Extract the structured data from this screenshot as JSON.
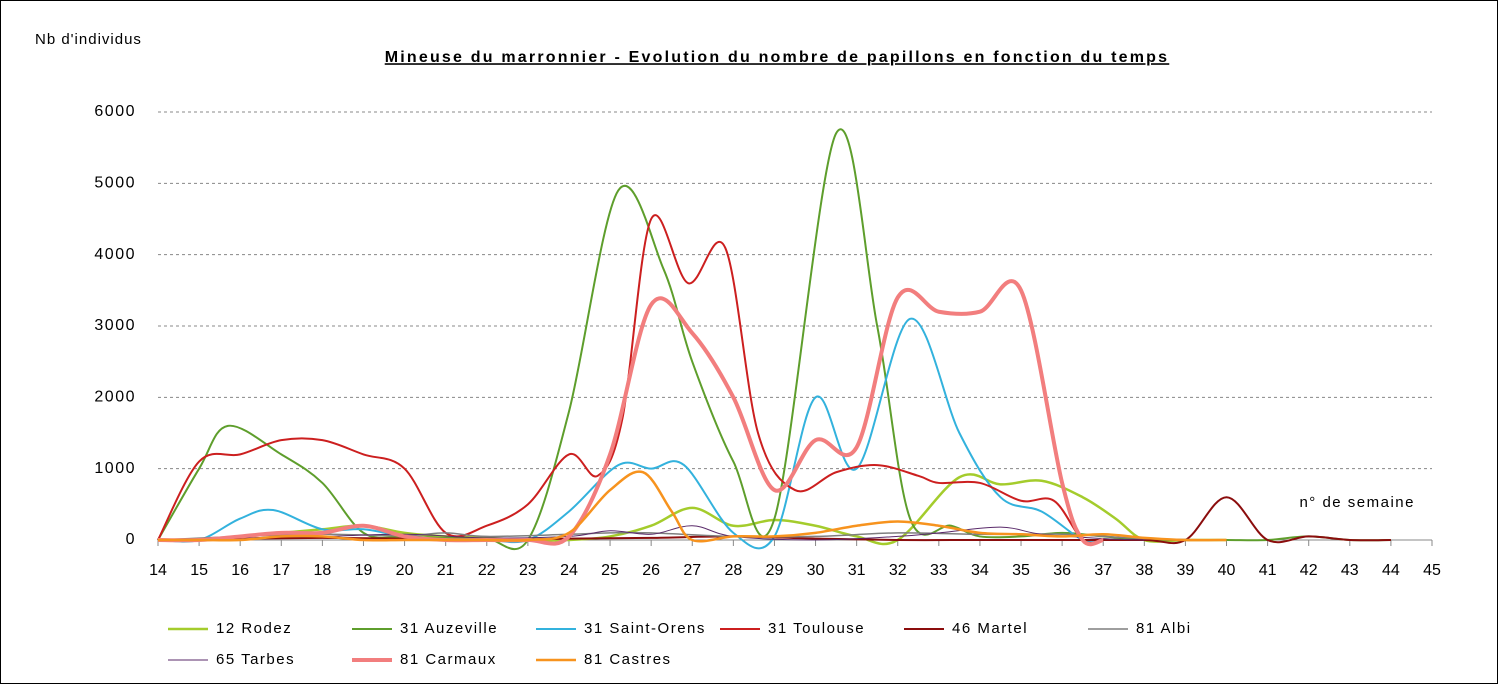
{
  "chart_data": {
    "type": "line",
    "title": "Mineuse du marronnier - Evolution du nombre de papillons en fonction du temps",
    "y_label": "Nb d'individus",
    "x_label": "n° de semaine",
    "xlim": [
      14,
      45
    ],
    "xticks": [
      14,
      15,
      16,
      17,
      18,
      19,
      20,
      21,
      22,
      23,
      24,
      25,
      26,
      27,
      28,
      29,
      30,
      31,
      32,
      33,
      34,
      35,
      36,
      37,
      38,
      39,
      40,
      41,
      42,
      43,
      44,
      45
    ],
    "ylim": [
      0,
      6000
    ],
    "yticks": [
      0,
      1000,
      2000,
      3000,
      4000,
      5000,
      6000
    ],
    "grid": true,
    "legend": "bottom",
    "smooth": true,
    "series": [
      {
        "name": "12 Rodez",
        "color": "#a4cc2c",
        "width": 2.5,
        "x": [
          14,
          15,
          16,
          17,
          18,
          19,
          20,
          21,
          22,
          23,
          24,
          25,
          26,
          27,
          28,
          29,
          30,
          31,
          32,
          33.5,
          34.5,
          35.5,
          36.5,
          37.3,
          38,
          39,
          40
        ],
        "values": [
          0,
          0,
          50,
          100,
          150,
          200,
          100,
          50,
          30,
          0,
          0,
          50,
          200,
          450,
          200,
          280,
          200,
          50,
          0,
          880,
          780,
          830,
          600,
          300,
          0,
          0,
          0
        ]
      },
      {
        "name": "31 Auzeville",
        "color": "#5e9e2c",
        "width": 2,
        "x": [
          14,
          15,
          15.7,
          17,
          18,
          19,
          20,
          21,
          22,
          23,
          24,
          25.2,
          26.3,
          27,
          28,
          29,
          30.5,
          31.5,
          32.3,
          33.3,
          34,
          35,
          36,
          37,
          38,
          39,
          40,
          41,
          42,
          43,
          44
        ],
        "values": [
          0,
          1000,
          1600,
          1200,
          800,
          100,
          50,
          30,
          20,
          0,
          1800,
          4900,
          3800,
          2500,
          1100,
          300,
          5700,
          3000,
          300,
          200,
          50,
          50,
          100,
          50,
          0,
          0,
          0,
          0,
          50,
          0,
          0
        ]
      },
      {
        "name": "31 Saint-Orens",
        "color": "#33b2dd",
        "width": 2,
        "x": [
          14,
          15,
          16,
          16.8,
          18,
          19,
          20,
          21,
          22,
          23,
          24,
          25.2,
          26,
          26.8,
          28,
          29,
          30,
          31,
          32.3,
          33.5,
          34.5,
          35.5,
          36.5,
          37
        ],
        "values": [
          0,
          0,
          300,
          420,
          150,
          150,
          50,
          0,
          0,
          0,
          400,
          1050,
          1000,
          1050,
          100,
          50,
          2000,
          1000,
          3100,
          1500,
          600,
          400,
          0,
          0
        ]
      },
      {
        "name": "31 Toulouse",
        "color": "#cc1f1f",
        "width": 2,
        "x": [
          14,
          15,
          16,
          17,
          18,
          19,
          20,
          21,
          22,
          23,
          24,
          24.7,
          25.3,
          26,
          26.9,
          27.8,
          28.6,
          29.5,
          30.5,
          31.5,
          32.5,
          33,
          34,
          35,
          35.8,
          36.5,
          37
        ],
        "values": [
          0,
          1100,
          1200,
          1400,
          1400,
          1200,
          1000,
          100,
          200,
          500,
          1200,
          900,
          1700,
          4500,
          3600,
          4100,
          1500,
          700,
          950,
          1050,
          900,
          800,
          800,
          550,
          550,
          0,
          0
        ]
      },
      {
        "name": "46 Martel",
        "color": "#8b0d0d",
        "width": 2,
        "x": [
          14,
          16,
          18,
          20,
          22,
          24,
          26,
          28,
          30,
          32,
          34,
          36,
          38,
          39,
          40,
          41,
          42,
          43,
          44
        ],
        "values": [
          0,
          20,
          30,
          20,
          0,
          20,
          30,
          50,
          20,
          0,
          0,
          0,
          0,
          0,
          600,
          0,
          50,
          0,
          0
        ]
      },
      {
        "name": "81 Albi",
        "color": "#7f7f7f",
        "width": 1.5,
        "x": [
          14,
          16,
          18,
          20,
          21,
          22,
          24,
          25,
          26,
          28,
          30,
          32,
          34,
          36,
          38,
          40
        ],
        "values": [
          0,
          50,
          80,
          60,
          100,
          50,
          80,
          100,
          100,
          50,
          50,
          100,
          80,
          80,
          20,
          0
        ]
      },
      {
        "name": "65 Tarbes",
        "color": "#5a2a6a",
        "width": 1,
        "x": [
          14,
          16,
          18,
          20,
          22,
          24,
          25,
          26,
          27,
          28,
          30,
          32,
          33,
          34.5,
          35.5,
          37,
          38
        ],
        "values": [
          0,
          30,
          50,
          80,
          30,
          50,
          130,
          80,
          200,
          50,
          0,
          50,
          100,
          180,
          80,
          20,
          0
        ]
      },
      {
        "name": "81 Carmaux",
        "color": "#f27e7e",
        "width": 4,
        "x": [
          14,
          15,
          16,
          17,
          18,
          19,
          20,
          21,
          22,
          23,
          24,
          25,
          26,
          27,
          28,
          29,
          30,
          31,
          32,
          33,
          34,
          35,
          36,
          36.5,
          37
        ],
        "values": [
          0,
          0,
          50,
          100,
          100,
          200,
          50,
          0,
          0,
          0,
          50,
          1200,
          3300,
          2900,
          2000,
          700,
          1400,
          1300,
          3400,
          3200,
          3200,
          3500,
          800,
          0,
          0
        ]
      },
      {
        "name": "81 Castres",
        "color": "#f7931e",
        "width": 2.5,
        "x": [
          14,
          15,
          16,
          17,
          18,
          19,
          20,
          21,
          22,
          23,
          24,
          25,
          25.8,
          26.5,
          27,
          28,
          29,
          30,
          31,
          32,
          33,
          34,
          35,
          36,
          37,
          38,
          39,
          40
        ],
        "values": [
          0,
          0,
          0,
          50,
          50,
          0,
          0,
          0,
          0,
          0,
          100,
          700,
          950,
          400,
          0,
          50,
          50,
          100,
          200,
          260,
          200,
          100,
          80,
          50,
          80,
          30,
          0,
          0
        ]
      }
    ]
  }
}
